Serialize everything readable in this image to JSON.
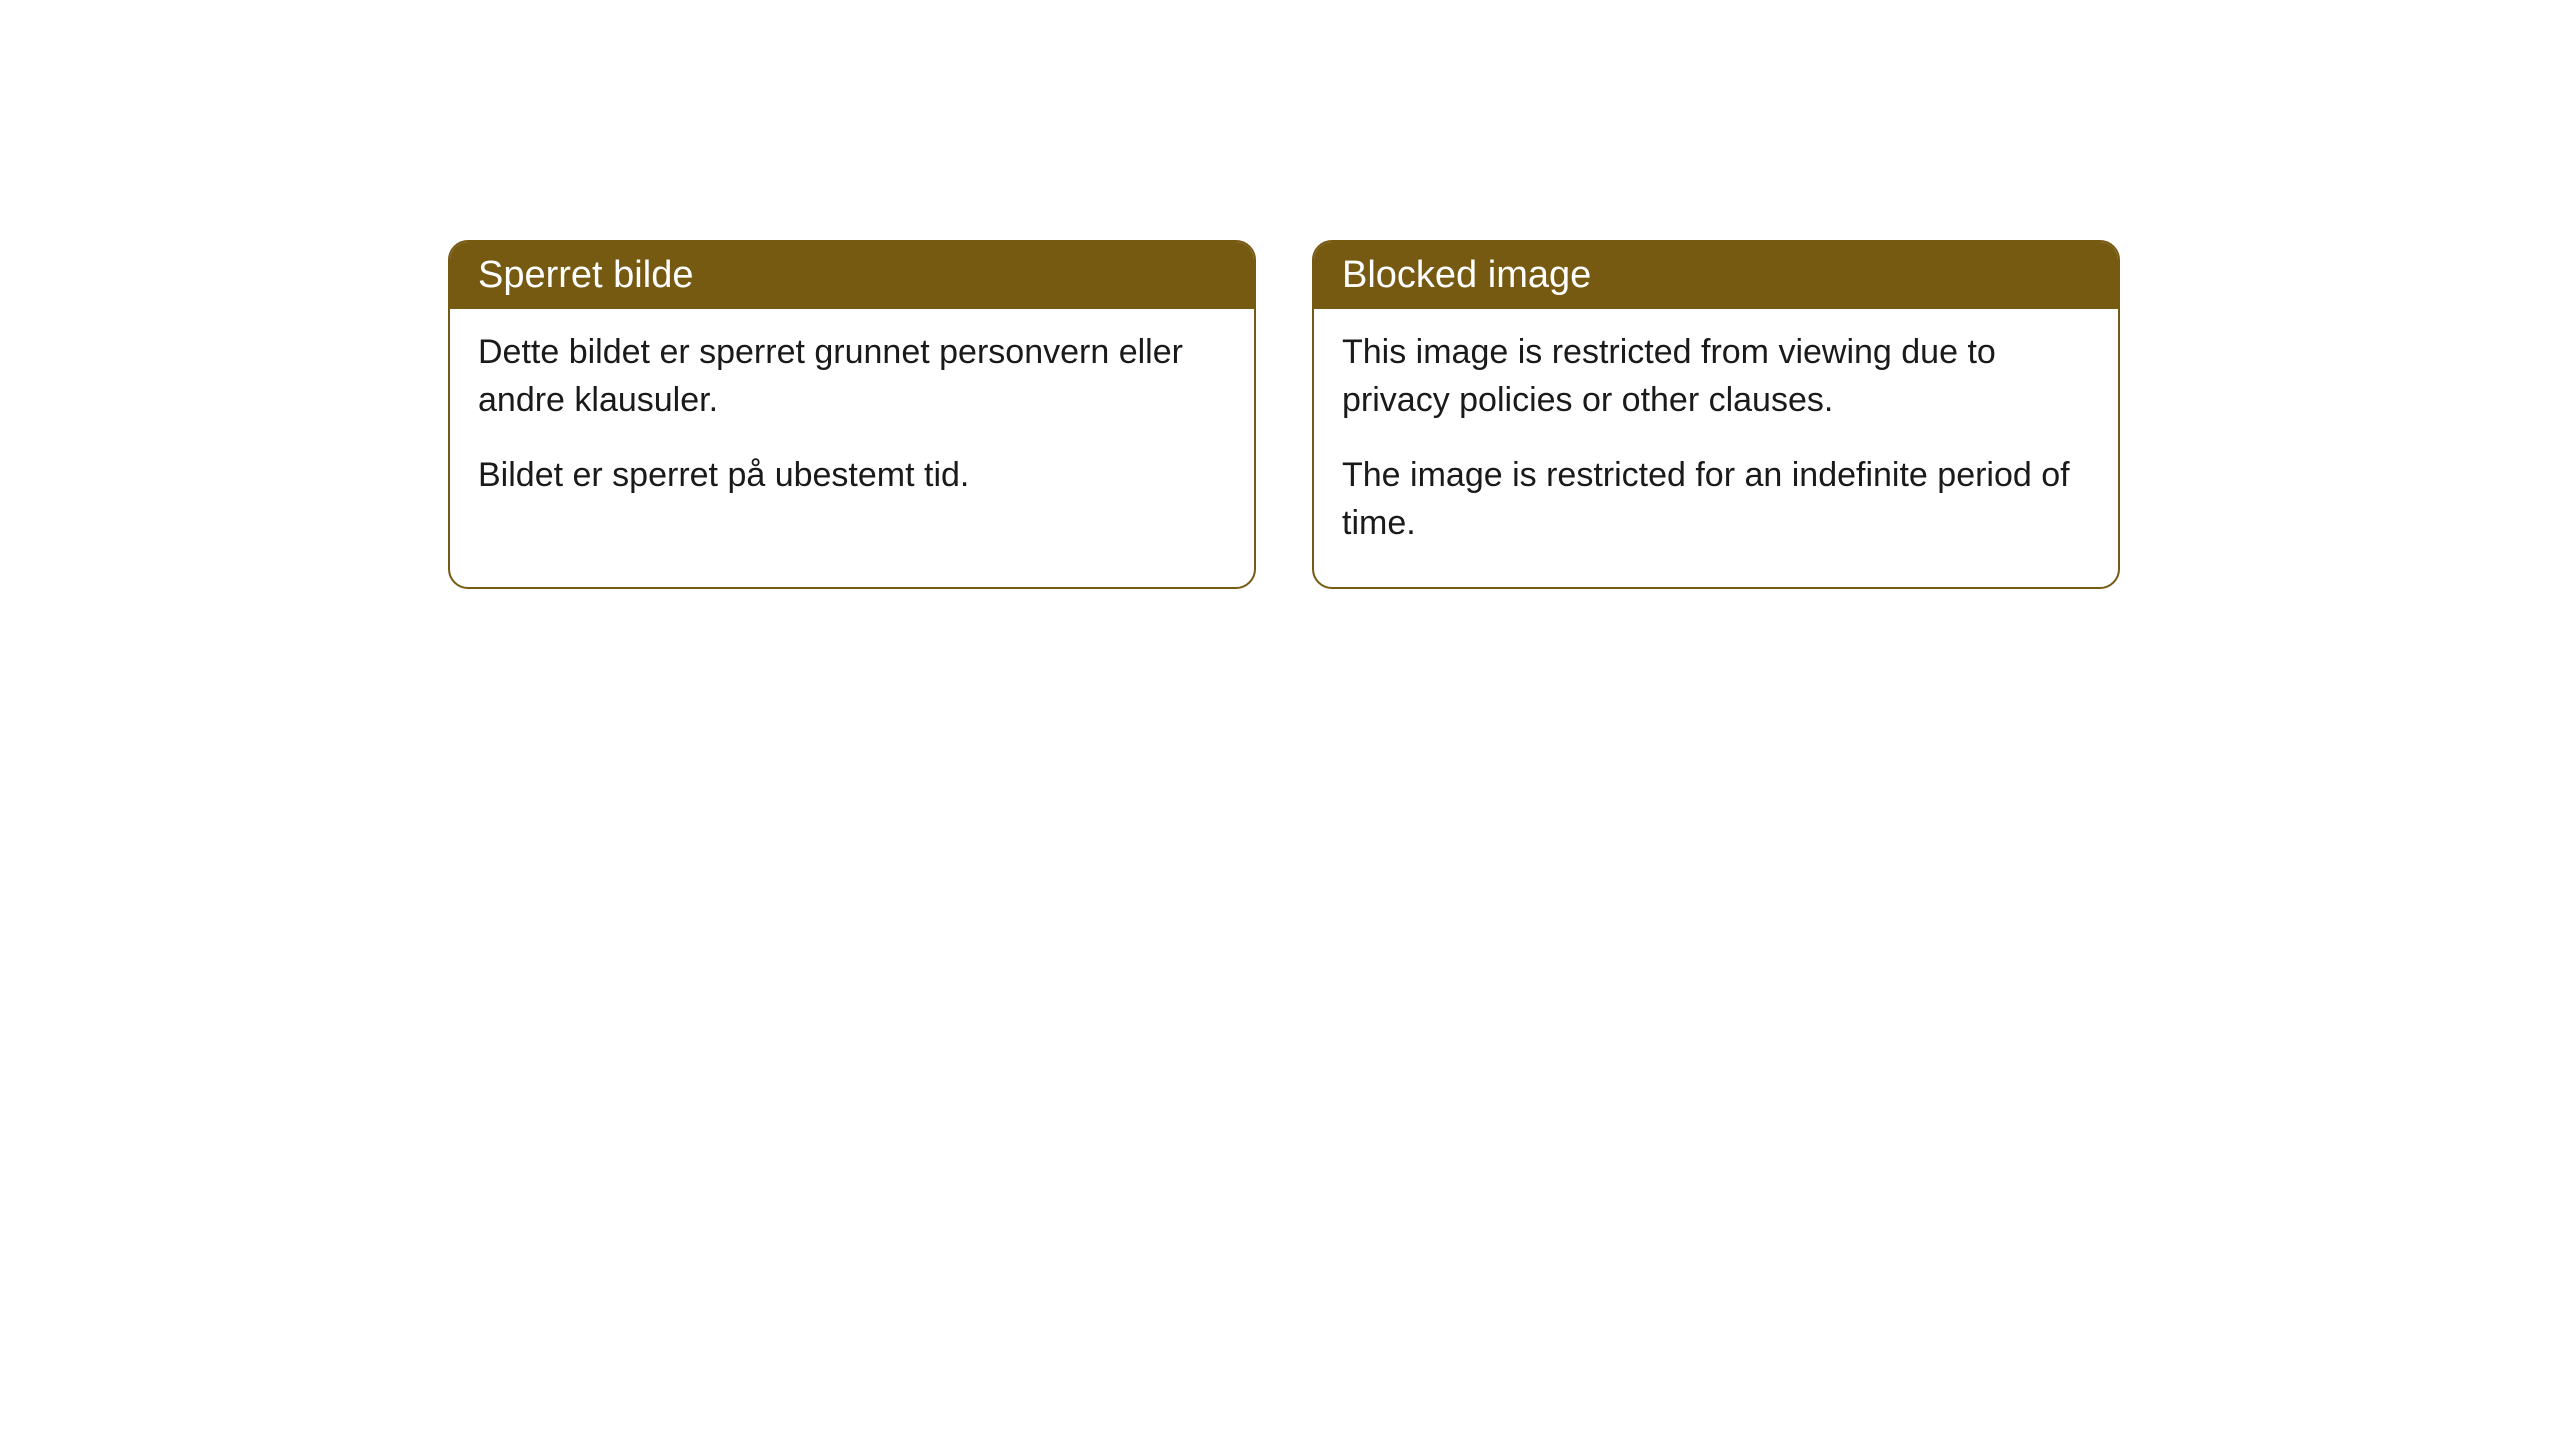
{
  "cards": [
    {
      "title": "Sperret bilde",
      "paragraph1": "Dette bildet er sperret grunnet personvern eller andre klausuler.",
      "paragraph2": "Bildet er sperret på ubestemt tid."
    },
    {
      "title": "Blocked image",
      "paragraph1": "This image is restricted from viewing due to privacy policies or other clauses.",
      "paragraph2": "The image is restricted for an indefinite period of time."
    }
  ],
  "styling": {
    "header_bg": "#775a11",
    "header_text_color": "#ffffff",
    "border_color": "#775a11",
    "body_bg": "#ffffff",
    "body_text_color": "#1a1a1a",
    "border_radius": 20,
    "header_fontsize": 38,
    "body_fontsize": 34
  }
}
